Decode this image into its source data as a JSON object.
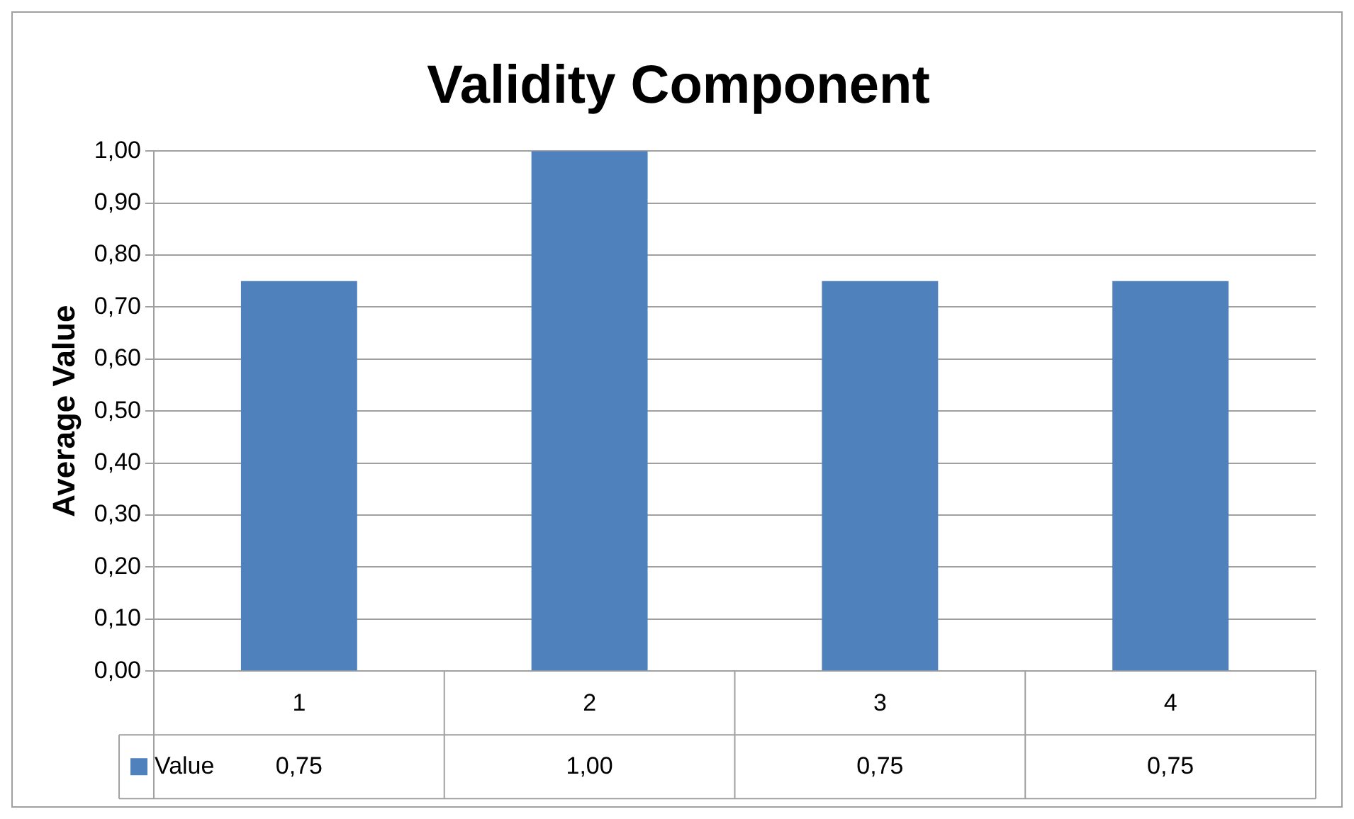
{
  "chart_data": {
    "type": "bar",
    "title": "Validity Component",
    "ylabel": "Average Value",
    "categories": [
      "1",
      "2",
      "3",
      "4"
    ],
    "series": [
      {
        "name": "Value",
        "color": "#4f81bd",
        "values": [
          0.75,
          1.0,
          0.75,
          0.75
        ],
        "value_labels": [
          "0,75",
          "1,00",
          "0,75",
          "0,75"
        ]
      }
    ],
    "ylim": [
      0,
      1
    ],
    "yticks": [
      {
        "value": 0,
        "label": "0,00"
      },
      {
        "value": 0.1,
        "label": "0,10"
      },
      {
        "value": 0.2,
        "label": "0,20"
      },
      {
        "value": 0.3,
        "label": "0,30"
      },
      {
        "value": 0.4,
        "label": "0,40"
      },
      {
        "value": 0.5,
        "label": "0,50"
      },
      {
        "value": 0.6,
        "label": "0,60"
      },
      {
        "value": 0.7,
        "label": "0,70"
      },
      {
        "value": 0.8,
        "label": "0,80"
      },
      {
        "value": 0.9,
        "label": "0,90"
      },
      {
        "value": 1,
        "label": "1,00"
      }
    ],
    "grid": "y",
    "legend": "bottom"
  }
}
